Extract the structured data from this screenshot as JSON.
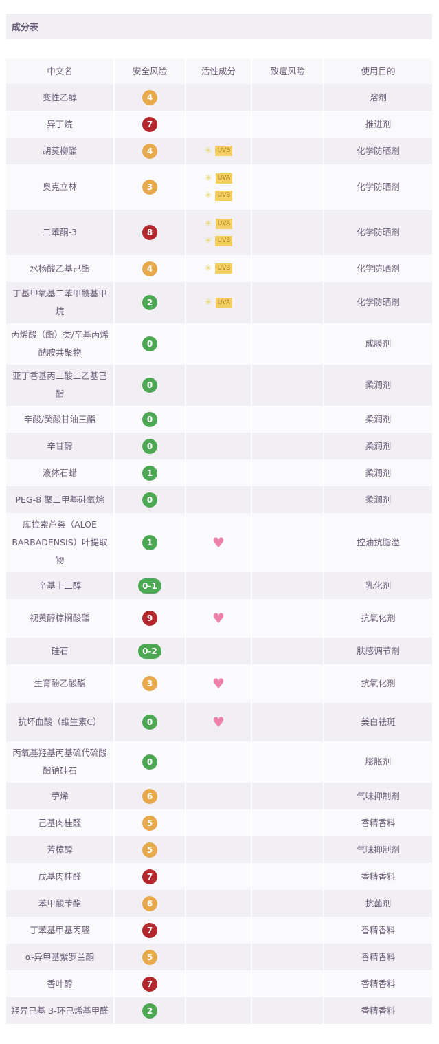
{
  "title": "成分表",
  "headers": [
    "中文名",
    "安全风险",
    "活性成分",
    "致痘风险",
    "使用目的"
  ],
  "colors": {
    "low": "#4ca852",
    "mid": "#e8a84c",
    "high": "#b3272d",
    "heart": "#ec82ab",
    "uv_tag": "#f3cf63"
  },
  "rows": [
    {
      "name": "变性乙醇",
      "risk": "4",
      "level": "mid",
      "active": [],
      "acne": "",
      "purpose": "溶剂"
    },
    {
      "name": "异丁烷",
      "risk": "7",
      "level": "high",
      "active": [],
      "acne": "",
      "purpose": "推进剂"
    },
    {
      "name": "胡莫柳酯",
      "risk": "4",
      "level": "mid",
      "active": [
        "UVB"
      ],
      "acne": "",
      "purpose": "化学防晒剂"
    },
    {
      "name": "奥克立林",
      "risk": "3",
      "level": "mid",
      "active": [
        "UVA",
        "UVB"
      ],
      "acne": "",
      "purpose": "化学防晒剂"
    },
    {
      "name": "二苯酮-3",
      "risk": "8",
      "level": "high",
      "active": [
        "UVA",
        "UVB"
      ],
      "acne": "",
      "purpose": "化学防晒剂"
    },
    {
      "name": "水杨酸乙基己酯",
      "risk": "4",
      "level": "mid",
      "active": [
        "UVB"
      ],
      "acne": "",
      "purpose": "化学防晒剂"
    },
    {
      "name": "丁基甲氧基二苯甲酰基甲烷",
      "risk": "2",
      "level": "low",
      "active": [
        "UVA"
      ],
      "acne": "",
      "purpose": "化学防晒剂"
    },
    {
      "name": "丙烯酸（酯）类/辛基丙烯酰胺共聚物",
      "risk": "0",
      "level": "low",
      "active": [],
      "acne": "",
      "purpose": "成膜剂"
    },
    {
      "name": "亚丁香基丙二酸二乙基己酯",
      "risk": "0",
      "level": "low",
      "active": [],
      "acne": "",
      "purpose": "柔润剂"
    },
    {
      "name": "辛酸/癸酸甘油三酯",
      "risk": "0",
      "level": "low",
      "active": [],
      "acne": "",
      "purpose": "柔润剂"
    },
    {
      "name": "辛甘醇",
      "risk": "0",
      "level": "low",
      "active": [],
      "acne": "",
      "purpose": "柔润剂"
    },
    {
      "name": "液体石蜡",
      "risk": "1",
      "level": "low",
      "active": [],
      "acne": "",
      "purpose": "柔润剂"
    },
    {
      "name": "PEG-8 聚二甲基硅氧烷",
      "risk": "0",
      "level": "low",
      "active": [],
      "acne": "",
      "purpose": "柔润剂"
    },
    {
      "name": "库拉索芦荟（ALOE BARBADENSIS）叶提取物",
      "risk": "1",
      "level": "low",
      "active": [
        "heart"
      ],
      "acne": "",
      "purpose": "控油抗脂溢"
    },
    {
      "name": "辛基十二醇",
      "risk": "0-1",
      "level": "low",
      "active": [],
      "acne": "",
      "purpose": "乳化剂"
    },
    {
      "name": "视黄醇棕榈酸酯",
      "risk": "9",
      "level": "high",
      "active": [
        "heart"
      ],
      "acne": "",
      "purpose": "抗氧化剂"
    },
    {
      "name": "硅石",
      "risk": "0-2",
      "level": "low",
      "active": [],
      "acne": "",
      "purpose": "肤感调节剂"
    },
    {
      "name": "生育酚乙酸酯",
      "risk": "3",
      "level": "mid",
      "active": [
        "heart"
      ],
      "acne": "",
      "purpose": "抗氧化剂"
    },
    {
      "name": "抗坏血酸（维生素C）",
      "risk": "0",
      "level": "low",
      "active": [
        "heart"
      ],
      "acne": "",
      "purpose": "美白祛斑"
    },
    {
      "name": "丙氧基羟基丙基硫代硫酸酯钠硅石",
      "risk": "0",
      "level": "low",
      "active": [],
      "acne": "",
      "purpose": "膨胀剂"
    },
    {
      "name": "苧烯",
      "risk": "6",
      "level": "mid",
      "active": [],
      "acne": "",
      "purpose": "气味抑制剂"
    },
    {
      "name": "己基肉桂醛",
      "risk": "5",
      "level": "mid",
      "active": [],
      "acne": "",
      "purpose": "香精香料"
    },
    {
      "name": "芳樟醇",
      "risk": "5",
      "level": "mid",
      "active": [],
      "acne": "",
      "purpose": "气味抑制剂"
    },
    {
      "name": "戊基肉桂醛",
      "risk": "7",
      "level": "high",
      "active": [],
      "acne": "",
      "purpose": "香精香料"
    },
    {
      "name": "苯甲酸苄酯",
      "risk": "6",
      "level": "mid",
      "active": [],
      "acne": "",
      "purpose": "抗菌剂"
    },
    {
      "name": "丁苯基甲基丙醛",
      "risk": "7",
      "level": "high",
      "active": [],
      "acne": "",
      "purpose": "香精香料"
    },
    {
      "name": "α-异甲基紫罗兰酮",
      "risk": "5",
      "level": "mid",
      "active": [],
      "acne": "",
      "purpose": "香精香料"
    },
    {
      "name": "香叶醇",
      "risk": "7",
      "level": "high",
      "active": [],
      "acne": "",
      "purpose": "香精香料"
    },
    {
      "name": "羟异己基 3-环己烯基甲醛",
      "risk": "2",
      "level": "low",
      "active": [],
      "acne": "",
      "purpose": "香精香料"
    }
  ]
}
